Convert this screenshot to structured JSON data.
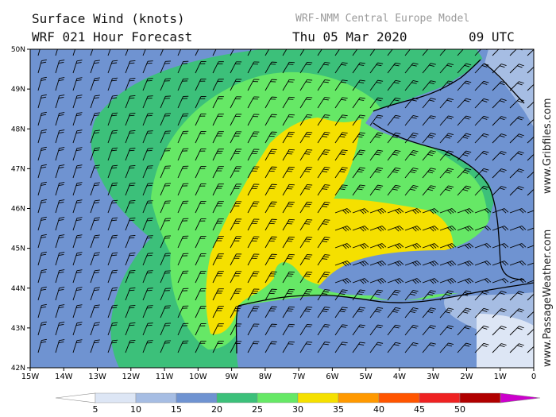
{
  "header": {
    "title": "Surface Wind (knots)",
    "forecast": "WRF 021 Hour Forecast",
    "model": "WRF-NMM Central Europe Model",
    "date": "Thu 05 Mar 2020",
    "time": "09 UTC"
  },
  "side_text": {
    "top": "www.Gribfiles.com",
    "bottom": "www.PassageWeather.com"
  },
  "map": {
    "lon_labels": [
      "15W",
      "14W",
      "13W",
      "12W",
      "11W",
      "10W",
      "9W",
      "8W",
      "7W",
      "6W",
      "5W",
      "4W",
      "3W",
      "2W",
      "1W",
      "0"
    ],
    "lat_labels": [
      "50N",
      "49N",
      "48N",
      "47N",
      "46N",
      "45N",
      "44N",
      "43N",
      "42N"
    ]
  },
  "legend": {
    "unit": "knots",
    "labels": [
      "5",
      "10",
      "15",
      "20",
      "25",
      "30",
      "35",
      "40",
      "45",
      "50"
    ],
    "colors": [
      "#ffffff",
      "#dde6f5",
      "#a6bde3",
      "#6f93d1",
      "#3cc07a",
      "#66e866",
      "#f5e000",
      "#ff9900",
      "#ff5500",
      "#ee2222",
      "#b00000",
      "#cc00cc"
    ]
  }
}
